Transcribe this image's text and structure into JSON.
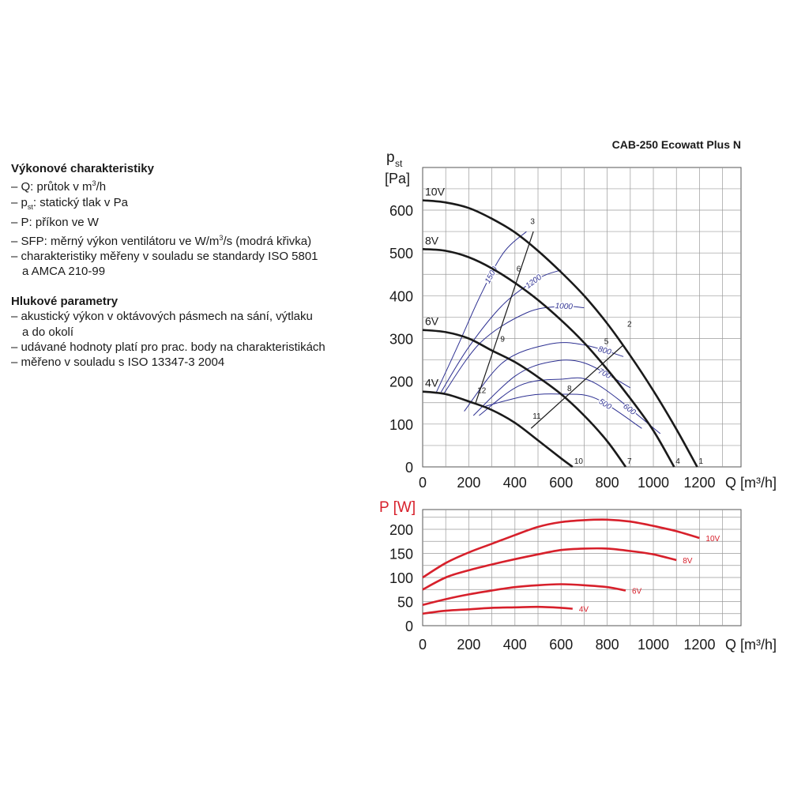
{
  "text_panel": {
    "performance_heading": "Výkonové charakteristiky",
    "performance_items": [
      [
        "– Q: průtok v m",
        "3",
        "/h"
      ],
      [
        "– p",
        "st",
        ": statický tlak v Pa"
      ],
      [
        "– P: příkon ve W"
      ],
      [
        "– SFP: měrný výkon ventilátoru ve W/m",
        "3",
        "/s (modrá křivka)"
      ],
      [
        "– charakteristiky měřeny v souladu se standardy ISO 5801"
      ],
      [
        "a AMCA 210-99"
      ]
    ],
    "noise_heading": "Hlukové parametry",
    "noise_items": [
      "– akustický výkon v oktávových pásmech na sání, výtlaku",
      "a do okolí",
      "– udávané hodnoty platí pro prac. body na charakteristikách",
      "– měřeno v souladu s ISO 13347-3 2004"
    ]
  },
  "chart_data": [
    {
      "type": "line",
      "title": "CAB-250 Ecowatt Plus N",
      "ylabel_main": "p",
      "ylabel_sub": "st",
      "yunit": "[Pa]",
      "xlabel": "Q [m³/h]",
      "xlim": [
        0,
        1200
      ],
      "ylim": [
        0,
        650
      ],
      "xticks": [
        0,
        200,
        400,
        600,
        800,
        1000,
        1200
      ],
      "yticks": [
        0,
        100,
        200,
        300,
        400,
        500,
        600
      ],
      "grid": true,
      "colors": {
        "fan_curve": "#1a1a1a",
        "sfp_curve": "#2e3192",
        "system_line": "#1a1a1a",
        "grid": "#9a9a9a"
      },
      "series": [
        {
          "name": "10V",
          "points": [
            [
              0,
              623
            ],
            [
              100,
              618
            ],
            [
              200,
              605
            ],
            [
              300,
              580
            ],
            [
              400,
              548
            ],
            [
              500,
              505
            ],
            [
              600,
              455
            ],
            [
              700,
              400
            ],
            [
              800,
              335
            ],
            [
              900,
              260
            ],
            [
              1000,
              178
            ],
            [
              1100,
              88
            ],
            [
              1190,
              0
            ]
          ]
        },
        {
          "name": "8V",
          "points": [
            [
              0,
              509
            ],
            [
              100,
              505
            ],
            [
              200,
              490
            ],
            [
              300,
              464
            ],
            [
              400,
              430
            ],
            [
              500,
              390
            ],
            [
              600,
              343
            ],
            [
              700,
              290
            ],
            [
              800,
              228
            ],
            [
              900,
              160
            ],
            [
              1000,
              85
            ],
            [
              1090,
              0
            ]
          ]
        },
        {
          "name": "6V",
          "points": [
            [
              0,
              320
            ],
            [
              100,
              315
            ],
            [
              200,
              300
            ],
            [
              300,
              272
            ],
            [
              400,
              245
            ],
            [
              500,
              210
            ],
            [
              600,
              170
            ],
            [
              700,
              120
            ],
            [
              800,
              60
            ],
            [
              880,
              0
            ]
          ]
        },
        {
          "name": "4V",
          "points": [
            [
              0,
              176
            ],
            [
              100,
              170
            ],
            [
              200,
              153
            ],
            [
              300,
              133
            ],
            [
              400,
              103
            ],
            [
              500,
              62
            ],
            [
              600,
              20
            ],
            [
              650,
              0
            ]
          ]
        }
      ],
      "sfp_series": [
        {
          "name": "1500",
          "points": [
            [
              60,
              175
            ],
            [
              150,
              280
            ],
            [
              250,
              400
            ],
            [
              350,
              500
            ],
            [
              450,
              550
            ]
          ]
        },
        {
          "name": "1200",
          "points": [
            [
              80,
              175
            ],
            [
              200,
              280
            ],
            [
              350,
              380
            ],
            [
              500,
              440
            ],
            [
              600,
              460
            ]
          ]
        },
        {
          "name": "1000",
          "points": [
            [
              90,
              170
            ],
            [
              250,
              290
            ],
            [
              450,
              360
            ],
            [
              600,
              375
            ],
            [
              700,
              372
            ]
          ]
        },
        {
          "name": "800",
          "points": [
            [
              180,
              130
            ],
            [
              350,
              245
            ],
            [
              550,
              287
            ],
            [
              700,
              285
            ],
            [
              870,
              258
            ]
          ]
        },
        {
          "name": "700",
          "points": [
            [
              220,
              120
            ],
            [
              400,
              212
            ],
            [
              550,
              245
            ],
            [
              700,
              243
            ],
            [
              900,
              185
            ]
          ]
        },
        {
          "name": "600",
          "points": [
            [
              245,
              120
            ],
            [
              420,
              190
            ],
            [
              600,
              205
            ],
            [
              750,
              195
            ],
            [
              1030,
              78
            ]
          ]
        },
        {
          "name": "500",
          "points": [
            [
              260,
              140
            ],
            [
              450,
              166
            ],
            [
              600,
              170
            ],
            [
              750,
              160
            ],
            [
              950,
              90
            ]
          ]
        }
      ],
      "system_lines": [
        {
          "points": [
            [
              230,
              150
            ],
            [
              480,
              550
            ]
          ]
        },
        {
          "points": [
            [
              470,
              90
            ],
            [
              870,
              285
            ]
          ]
        }
      ],
      "point_labels": [
        {
          "label": "1",
          "q": 1190,
          "p": 0
        },
        {
          "label": "2",
          "q": 880,
          "p": 320
        },
        {
          "label": "3",
          "q": 460,
          "p": 560
        },
        {
          "label": "4",
          "q": 1090,
          "p": 0
        },
        {
          "label": "5",
          "q": 780,
          "p": 280
        },
        {
          "label": "6",
          "q": 400,
          "p": 450
        },
        {
          "label": "7",
          "q": 880,
          "p": 0
        },
        {
          "label": "8",
          "q": 620,
          "p": 170
        },
        {
          "label": "9",
          "q": 330,
          "p": 285
        },
        {
          "label": "10",
          "q": 650,
          "p": 0
        },
        {
          "label": "11",
          "q": 470,
          "p": 105
        },
        {
          "label": "12",
          "q": 230,
          "p": 165
        }
      ],
      "sfp_labels": [
        "1500",
        "1200",
        "1000",
        "800",
        "700",
        "600",
        "500"
      ]
    },
    {
      "type": "line",
      "title": "",
      "ylabel": "P [W]",
      "xlabel": "Q [m³/h]",
      "xlim": [
        0,
        1200
      ],
      "ylim": [
        0,
        235
      ],
      "xticks": [
        0,
        200,
        400,
        600,
        800,
        1000,
        1200
      ],
      "yticks": [
        0,
        50,
        100,
        150,
        200
      ],
      "grid": true,
      "colors": {
        "power_curve": "#d7202b",
        "ylabel": "#d7202b",
        "grid": "#9a9a9a"
      },
      "series": [
        {
          "name": "10V",
          "points": [
            [
              0,
              100
            ],
            [
              100,
              130
            ],
            [
              200,
              152
            ],
            [
              300,
              170
            ],
            [
              400,
              188
            ],
            [
              500,
              205
            ],
            [
              600,
              215
            ],
            [
              700,
              219
            ],
            [
              800,
              220
            ],
            [
              900,
              216
            ],
            [
              1000,
              207
            ],
            [
              1100,
              196
            ],
            [
              1200,
              182
            ]
          ]
        },
        {
          "name": "8V",
          "points": [
            [
              0,
              75
            ],
            [
              100,
              100
            ],
            [
              200,
              115
            ],
            [
              300,
              127
            ],
            [
              400,
              138
            ],
            [
              500,
              148
            ],
            [
              600,
              157
            ],
            [
              700,
              160
            ],
            [
              800,
              160
            ],
            [
              900,
              155
            ],
            [
              1000,
              148
            ],
            [
              1100,
              136
            ]
          ]
        },
        {
          "name": "6V",
          "points": [
            [
              0,
              43
            ],
            [
              100,
              55
            ],
            [
              200,
              65
            ],
            [
              300,
              73
            ],
            [
              400,
              80
            ],
            [
              500,
              84
            ],
            [
              600,
              86
            ],
            [
              700,
              84
            ],
            [
              800,
              80
            ],
            [
              880,
              73
            ]
          ]
        },
        {
          "name": "4V",
          "points": [
            [
              0,
              25
            ],
            [
              100,
              31
            ],
            [
              200,
              34
            ],
            [
              300,
              37
            ],
            [
              400,
              38
            ],
            [
              500,
              39
            ],
            [
              600,
              37
            ],
            [
              650,
              35
            ]
          ]
        }
      ]
    }
  ]
}
